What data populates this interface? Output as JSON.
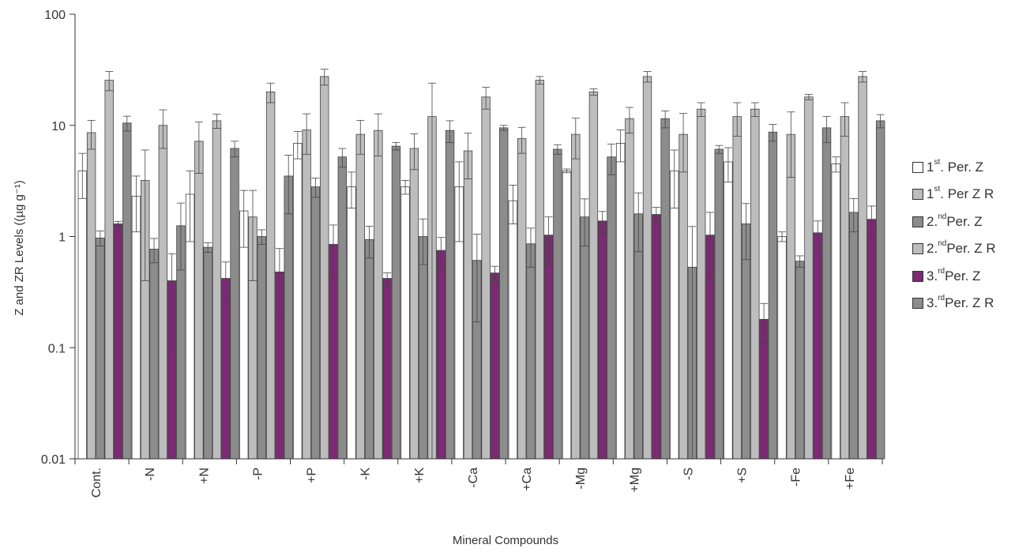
{
  "chart_data": {
    "type": "bar",
    "title": "",
    "xlabel": "Mineral Compounds",
    "ylabel": "Z and ZR Levels ((µg g⁻¹)",
    "yscale": "log",
    "ylim": [
      0.01,
      100
    ],
    "yticks": [
      "0.01",
      "0.1",
      "1",
      "10",
      "100"
    ],
    "grid": false,
    "legend_position": "right",
    "categories": [
      "Cont.",
      "-N",
      "+N",
      "-P",
      "+P",
      "-K",
      "+K",
      "-Ca",
      "+Ca",
      "-Mg",
      "+Mg",
      "-S",
      "+S",
      "-Fe",
      "+Fe"
    ],
    "series": [
      {
        "key": "s1",
        "name": "1st Per. Z",
        "color": "#ffffff",
        "values": [
          3.9,
          2.3,
          2.4,
          1.7,
          6.9,
          2.8,
          2.8,
          2.8,
          2.1,
          3.9,
          6.9,
          3.9,
          4.7,
          1.0,
          4.5
        ],
        "errors": [
          1.7,
          1.2,
          1.5,
          0.9,
          1.9,
          1.0,
          0.4,
          1.9,
          0.8,
          0.15,
          2.2,
          2.1,
          1.6,
          0.1,
          0.7
        ]
      },
      {
        "key": "s2",
        "name": "1st Per Z R",
        "color": "#bdbdbd",
        "values": [
          8.6,
          3.2,
          7.2,
          1.5,
          9.1,
          8.3,
          6.2,
          5.9,
          7.6,
          8.3,
          11.5,
          8.3,
          12.0,
          8.3,
          12.0
        ],
        "errors": [
          2.5,
          2.8,
          3.5,
          1.1,
          3.6,
          2.8,
          2.2,
          2.6,
          2.0,
          3.3,
          3.0,
          4.5,
          4.0,
          4.9,
          4.0
        ]
      },
      {
        "key": "s3",
        "name": "2nd Per. Z",
        "color": "#8c8c8c",
        "values": [
          0.97,
          0.77,
          0.8,
          1.0,
          2.8,
          0.94,
          1.0,
          0.61,
          0.86,
          1.5,
          1.6,
          0.53,
          1.3,
          0.6,
          1.65
        ],
        "errors": [
          0.15,
          0.19,
          0.08,
          0.15,
          0.55,
          0.3,
          0.44,
          0.44,
          0.33,
          0.68,
          0.87,
          0.7,
          0.68,
          0.07,
          0.55
        ]
      },
      {
        "key": "s4",
        "name": "2nd Per. Z R",
        "color": "#bdbdbd",
        "values": [
          25.5,
          10.0,
          11.0,
          20.0,
          27.5,
          9.0,
          12.0,
          18.0,
          25.5,
          20.0,
          27.5,
          14.0,
          14.0,
          18.0,
          27.5
        ],
        "errors": [
          5.0,
          3.8,
          1.6,
          4.0,
          4.5,
          3.7,
          12.0,
          4.0,
          2.0,
          1.3,
          3.0,
          2.0,
          2.0,
          1.0,
          3.0
        ]
      },
      {
        "key": "s5",
        "name": "3rd Per. Z",
        "color": "#7b2a73",
        "values": [
          1.3,
          0.4,
          0.42,
          0.48,
          0.85,
          0.42,
          0.75,
          0.47,
          1.03,
          1.38,
          1.58,
          1.03,
          0.18,
          1.08,
          1.43
        ],
        "errors": [
          0.07,
          0.3,
          0.17,
          0.3,
          0.42,
          0.05,
          0.23,
          0.07,
          0.47,
          0.3,
          0.25,
          0.62,
          0.07,
          0.3,
          0.45
        ]
      },
      {
        "key": "s6",
        "name": "3rd Per. Z R",
        "color": "#8c8c8c",
        "values": [
          10.5,
          1.25,
          6.2,
          3.5,
          5.2,
          6.5,
          9.0,
          9.5,
          6.1,
          5.2,
          11.5,
          6.1,
          8.7,
          9.5,
          11.0
        ],
        "errors": [
          1.6,
          0.75,
          1.0,
          1.9,
          1.0,
          0.5,
          2.0,
          0.5,
          0.6,
          1.6,
          2.0,
          0.5,
          1.5,
          2.5,
          1.5
        ]
      }
    ]
  },
  "legend": [
    {
      "prefix": "1",
      "sup": "st",
      "suffix": ". Per. Z",
      "color": "#ffffff"
    },
    {
      "prefix": "1",
      "sup": "st",
      "suffix": ". Per Z R",
      "color": "#bdbdbd"
    },
    {
      "prefix": "2.",
      "sup": "nd",
      "suffix": "Per. Z",
      "color": "#8c8c8c"
    },
    {
      "prefix": "2.",
      "sup": "nd",
      "suffix": "Per. Z R",
      "color": "#bdbdbd"
    },
    {
      "prefix": "3.",
      "sup": "rd",
      "suffix": "Per. Z",
      "color": "#7b2a73"
    },
    {
      "prefix": "3.",
      "sup": "rd",
      "suffix": "Per. Z R",
      "color": "#8c8c8c"
    }
  ]
}
